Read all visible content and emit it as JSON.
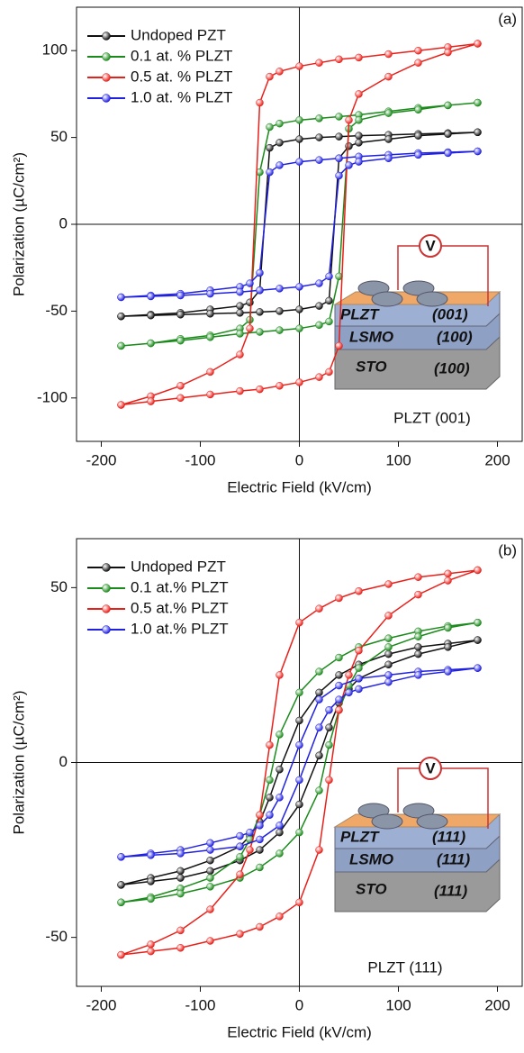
{
  "chart_data": [
    {
      "type": "line",
      "annotation": "(a)",
      "sample_label": "PLZT (001)",
      "xlabel": "Electric Field (kV/cm)",
      "ylabel": "Polarization (µC/cm²)",
      "xlim": [
        -225,
        225
      ],
      "ylim": [
        -125,
        125
      ],
      "xticks": [
        -200,
        -100,
        0,
        100,
        200
      ],
      "yticks": [
        -100,
        -50,
        0,
        50,
        100
      ],
      "legend": "upper left",
      "inset": {
        "top_layer": "PLZT",
        "top_orientation": "(001)",
        "middle_layer": "LSMO",
        "middle_orientation": "(100)",
        "bottom_layer": "STO",
        "bottom_orientation": "(100)",
        "meter": "V"
      },
      "x": [
        180,
        150,
        120,
        90,
        60,
        40,
        20,
        0,
        -20,
        -30,
        -40,
        -50,
        -60,
        -90,
        -120,
        -150,
        -180,
        -180,
        -150,
        -120,
        -90,
        -60,
        -40,
        -20,
        0,
        20,
        30,
        40,
        50,
        60,
        90,
        120,
        150,
        180
      ],
      "series": [
        {
          "name": "Undoped PZT",
          "color": "#111111",
          "values": [
            53,
            52.5,
            52,
            51.5,
            51,
            50.5,
            50,
            49,
            47,
            44,
            -38,
            -45,
            -47,
            -49,
            -51,
            -52,
            -53,
            -53,
            -52.5,
            -52,
            -51.5,
            -51,
            -50.5,
            -50,
            -49,
            -47,
            -44,
            38,
            45,
            47,
            49,
            51,
            52,
            53
          ]
        },
        {
          "name": "0.1 at. % PLZT",
          "color": "#1a8a1a",
          "values": [
            70,
            68.5,
            67,
            65,
            63,
            62,
            61,
            60,
            58,
            56,
            30,
            -55,
            -60,
            -64,
            -66,
            -68.5,
            -70,
            -70,
            -68.5,
            -67,
            -65,
            -63,
            -62,
            -61,
            -60,
            -58,
            -56,
            -30,
            55,
            60,
            64,
            66,
            68.5,
            70
          ]
        },
        {
          "name": "0.5 at. % PLZT",
          "color": "#e8201a",
          "values": [
            104,
            102,
            100,
            98,
            96,
            95,
            93,
            91,
            88,
            85,
            70,
            -60,
            -75,
            -85,
            -93,
            -99,
            -104,
            -104,
            -102,
            -100,
            -98,
            -96,
            -95,
            -93,
            -91,
            -88,
            -85,
            -70,
            60,
            75,
            85,
            93,
            99,
            104
          ]
        },
        {
          "name": "1.0 at. % PLZT",
          "color": "#2020e0",
          "values": [
            42,
            41.5,
            41,
            40,
            39,
            38,
            37,
            36,
            34,
            30,
            -28,
            -34,
            -36,
            -38,
            -40,
            -41,
            -42,
            -42,
            -41.5,
            -41,
            -40,
            -39,
            -38,
            -37,
            -36,
            -34,
            -30,
            28,
            34,
            36,
            38,
            40,
            41,
            42
          ]
        }
      ]
    },
    {
      "type": "line",
      "annotation": "(b)",
      "sample_label": "PLZT (111)",
      "xlabel": "Electric Field (kV/cm)",
      "ylabel": "Polarization (µC/cm²)",
      "xlim": [
        -225,
        225
      ],
      "ylim": [
        -64,
        64
      ],
      "xticks": [
        -200,
        -100,
        0,
        100,
        200
      ],
      "yticks": [
        -50,
        0,
        50
      ],
      "legend": "upper left",
      "inset": {
        "top_layer": "PLZT",
        "top_orientation": "(111)",
        "middle_layer": "LSMO",
        "middle_orientation": "(111)",
        "bottom_layer": "STO",
        "bottom_orientation": "(111)",
        "meter": "V"
      },
      "x": [
        180,
        150,
        120,
        90,
        60,
        40,
        20,
        0,
        -20,
        -30,
        -40,
        -50,
        -60,
        -90,
        -120,
        -150,
        -180,
        -180,
        -150,
        -120,
        -90,
        -60,
        -40,
        -20,
        0,
        20,
        30,
        40,
        50,
        60,
        90,
        120,
        150,
        180
      ],
      "series": [
        {
          "name": "Undoped PZT",
          "color": "#111111",
          "values": [
            35,
            34,
            33,
            31,
            28,
            25,
            20,
            12,
            -2,
            -10,
            -17,
            -21,
            -24,
            -28,
            -31,
            -33,
            -35,
            -35,
            -34,
            -33,
            -31,
            -28,
            -25,
            -20,
            -12,
            2,
            10,
            17,
            21,
            24,
            28,
            31,
            33,
            35
          ]
        },
        {
          "name": "0.1 at.% PLZT",
          "color": "#1a8a1a",
          "values": [
            40,
            39,
            37.5,
            35.5,
            33,
            30,
            26,
            20,
            8,
            -5,
            -15,
            -22,
            -27,
            -33,
            -36,
            -38.5,
            -40,
            -40,
            -39,
            -37.5,
            -35.5,
            -33,
            -30,
            -26,
            -20,
            -8,
            5,
            15,
            22,
            27,
            33,
            36,
            38.5,
            40
          ]
        },
        {
          "name": "0.5 at.% PLZT",
          "color": "#e8201a",
          "values": [
            55,
            54,
            53,
            51,
            49,
            47,
            44,
            40,
            25,
            5,
            -15,
            -25,
            -32,
            -42,
            -48,
            -52,
            -55,
            -55,
            -54,
            -53,
            -51,
            -49,
            -47,
            -44,
            -40,
            -25,
            -5,
            15,
            25,
            32,
            42,
            48,
            52,
            55
          ]
        },
        {
          "name": "1.0 at.% PLZT",
          "color": "#2020e0",
          "values": [
            27,
            26.5,
            26,
            25,
            24,
            22,
            18,
            5,
            -10,
            -15,
            -18,
            -20,
            -21,
            -23,
            -25,
            -26,
            -27,
            -27,
            -26.5,
            -26,
            -25,
            -24,
            -22,
            -18,
            -5,
            10,
            15,
            18,
            20,
            21,
            23,
            25,
            26,
            27
          ]
        }
      ]
    }
  ]
}
